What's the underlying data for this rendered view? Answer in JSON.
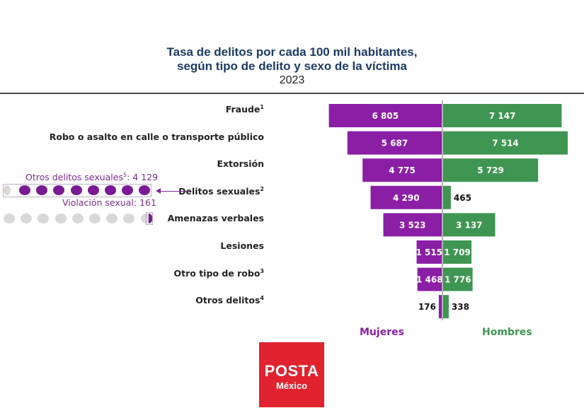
{
  "title_line1": "Tasa de delitos por cada 100 mil habitantes,",
  "title_line2": "según tipo de delito y sexo de la víctima",
  "year": "2023",
  "colors": {
    "mujeres": "#8a1fa6",
    "hombres": "#3f9552",
    "dot_purple": "#7a1a94",
    "dot_gray": "#d8d8d8",
    "logo_bg": "#e0232e"
  },
  "chart_data": {
    "type": "bar",
    "orientation": "horizontal-diverging",
    "title": "Tasa de delitos por cada 100 mil habitantes, según tipo de delito y sexo de la víctima",
    "subtitle": "2023",
    "categories": [
      {
        "name": "Fraude",
        "sup": "1"
      },
      {
        "name": "Robo o asalto en calle o transporte público",
        "sup": ""
      },
      {
        "name": "Extorsión",
        "sup": ""
      },
      {
        "name": "Delitos sexuales",
        "sup": "2"
      },
      {
        "name": "Amenazas verbales",
        "sup": ""
      },
      {
        "name": "Lesiones",
        "sup": ""
      },
      {
        "name": "Otro tipo de robo",
        "sup": "3"
      },
      {
        "name": "Otros delitos",
        "sup": "4"
      }
    ],
    "series": [
      {
        "name": "Mujeres",
        "values": [
          6805,
          5687,
          4775,
          4290,
          3523,
          1515,
          1468,
          176
        ],
        "labels": [
          "6 805",
          "5 687",
          "4 775",
          "4 290",
          "3 523",
          "1 515",
          "1 468",
          "176"
        ]
      },
      {
        "name": "Hombres",
        "values": [
          7147,
          7514,
          5729,
          465,
          3137,
          1709,
          1776,
          338
        ],
        "labels": [
          "7 147",
          "7 514",
          "5 729",
          "465",
          "3 137",
          "1 709",
          "1 776",
          "338"
        ]
      }
    ],
    "legend": [
      "Mujeres",
      "Hombres"
    ],
    "legend_position": "bottom"
  },
  "annotation": {
    "top_text": "Otros delitos sexuales",
    "top_sup": "5",
    "top_value": ":  4 129",
    "bottom_text": "Violación sexual: 161",
    "purple_dots": 8,
    "gray_dots": 9,
    "other_sexual_crimes_rate": 4129,
    "rape_rate": 161
  },
  "logo": {
    "main": "POSTA",
    "sub": "México"
  }
}
